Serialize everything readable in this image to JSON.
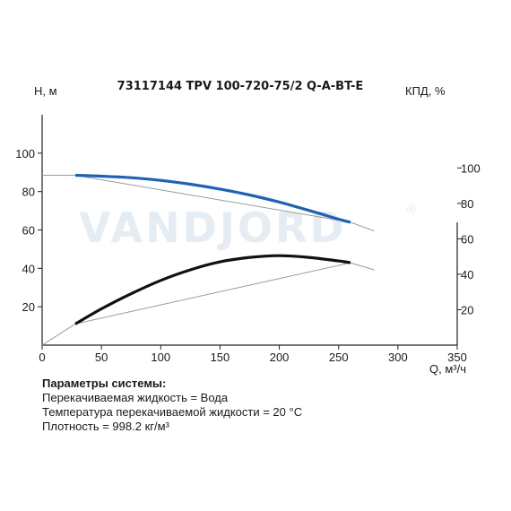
{
  "chart_data": {
    "type": "line",
    "title": "73117144 TPV 100-720-75/2 Q-A-BT-E",
    "xlabel": "Q, м³/ч",
    "ylabel_left": "H, м",
    "ylabel_right": "КПД, %",
    "xlim": [
      0,
      350
    ],
    "x_ticks": [
      "0",
      "50",
      "100",
      "150",
      "200",
      "250",
      "300",
      "350"
    ],
    "ylim_left": [
      0,
      120
    ],
    "y_ticks_left": [
      "20",
      "40",
      "60",
      "80",
      "100"
    ],
    "ylim_right": [
      0,
      130
    ],
    "y_ticks_right": [
      "20",
      "40",
      "60",
      "80",
      "100"
    ],
    "watermark": "VANDJORD",
    "watermark_mark": "®",
    "colors": {
      "head": "#1f62b3",
      "efficiency": "#111111",
      "extension": "#9a9a9a",
      "axis": "#222222"
    },
    "series": [
      {
        "axis": "left",
        "color": "#1f62b3",
        "dashed_extension": true,
        "operating": [
          [
            28,
            88.5
          ],
          [
            50,
            88.0
          ],
          [
            75,
            87.2
          ],
          [
            100,
            85.8
          ],
          [
            125,
            83.8
          ],
          [
            150,
            81.3
          ],
          [
            175,
            78.2
          ],
          [
            200,
            74.5
          ],
          [
            225,
            70.2
          ],
          [
            250,
            65.6
          ],
          [
            260,
            64.0
          ]
        ],
        "extended": [
          [
            0,
            88.5
          ],
          [
            28,
            88.5
          ],
          [
            260,
            64.0
          ],
          [
            280,
            59.5
          ]
        ]
      },
      {
        "axis": "right",
        "color": "#111111",
        "dashed_extension": true,
        "operating": [
          [
            28,
            12
          ],
          [
            50,
            20.5
          ],
          [
            75,
            29.0
          ],
          [
            100,
            36.5
          ],
          [
            125,
            42.5
          ],
          [
            150,
            47.0
          ],
          [
            175,
            49.5
          ],
          [
            200,
            50.5
          ],
          [
            225,
            49.5
          ],
          [
            250,
            47.5
          ],
          [
            260,
            46.5
          ]
        ],
        "extended": [
          [
            0,
            0
          ],
          [
            28,
            12
          ],
          [
            260,
            46.5
          ],
          [
            280,
            42.5
          ]
        ]
      }
    ]
  },
  "params": {
    "title": "Параметры системы:",
    "lines": [
      "Перекачиваемая жидкость = Вода",
      "Температура перекачиваемой жидкости = 20 °C",
      "Плотность = 998.2 кг/м³"
    ]
  }
}
